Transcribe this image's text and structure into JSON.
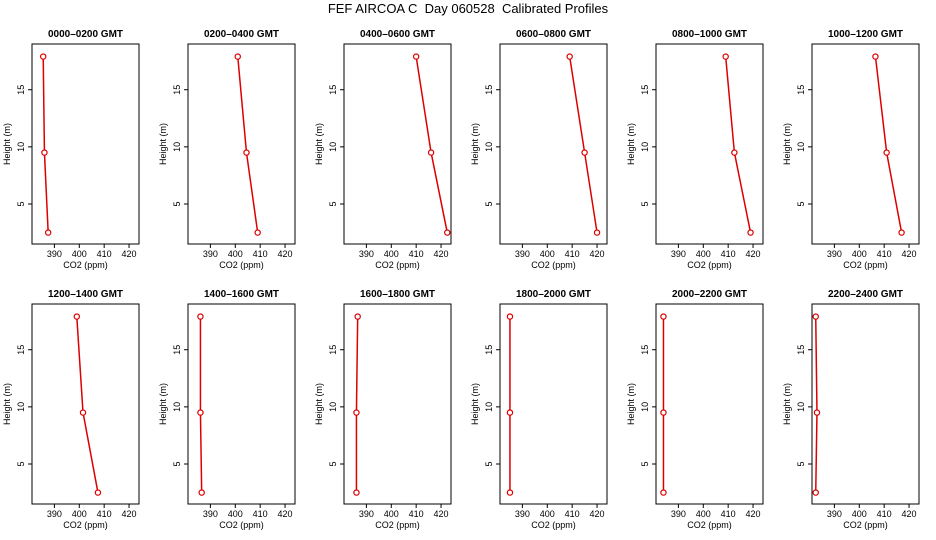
{
  "title": "FEF AIRCOA C  Day 060528  Calibrated Profiles",
  "colors": {
    "profile": "#dd0000",
    "axis": "#000000"
  },
  "chart_data": [
    {
      "type": "line",
      "title": "0000–0200 GMT",
      "xlabel": "CO2 (ppm)",
      "ylabel": "Height (m)",
      "xlim": [
        381,
        424
      ],
      "ylim": [
        1.5,
        19
      ],
      "xticks": [
        390,
        400,
        410,
        420
      ],
      "yticks": [
        5,
        10,
        15
      ],
      "x": [
        387.5,
        386.0,
        385.5
      ],
      "y": [
        2.5,
        9.5,
        17.9
      ]
    },
    {
      "type": "line",
      "title": "0200–0400 GMT",
      "xlabel": "CO2 (ppm)",
      "ylabel": "Height (m)",
      "xlim": [
        381,
        424
      ],
      "ylim": [
        1.5,
        19
      ],
      "xticks": [
        390,
        400,
        410,
        420
      ],
      "yticks": [
        5,
        10,
        15
      ],
      "x": [
        409.0,
        404.5,
        401.0
      ],
      "y": [
        2.5,
        9.5,
        17.9
      ]
    },
    {
      "type": "line",
      "title": "0400–0600 GMT",
      "xlabel": "CO2 (ppm)",
      "ylabel": "Height (m)",
      "xlim": [
        381,
        424
      ],
      "ylim": [
        1.5,
        19
      ],
      "xticks": [
        390,
        400,
        410,
        420
      ],
      "yticks": [
        5,
        10,
        15
      ],
      "x": [
        422.5,
        416.0,
        410.0
      ],
      "y": [
        2.5,
        9.5,
        17.9
      ]
    },
    {
      "type": "line",
      "title": "0600–0800 GMT",
      "xlabel": "CO2 (ppm)",
      "ylabel": "Height (m)",
      "xlim": [
        381,
        424
      ],
      "ylim": [
        1.5,
        19
      ],
      "xticks": [
        390,
        400,
        410,
        420
      ],
      "yticks": [
        5,
        10,
        15
      ],
      "x": [
        420.0,
        415.0,
        409.0
      ],
      "y": [
        2.5,
        9.5,
        17.9
      ]
    },
    {
      "type": "line",
      "title": "0800–1000 GMT",
      "xlabel": "CO2 (ppm)",
      "ylabel": "Height (m)",
      "xlim": [
        381,
        424
      ],
      "ylim": [
        1.5,
        19
      ],
      "xticks": [
        390,
        400,
        410,
        420
      ],
      "yticks": [
        5,
        10,
        15
      ],
      "x": [
        419.0,
        412.5,
        409.0
      ],
      "y": [
        2.5,
        9.5,
        17.9
      ]
    },
    {
      "type": "line",
      "title": "1000–1200 GMT",
      "xlabel": "CO2 (ppm)",
      "ylabel": "Height (m)",
      "xlim": [
        381,
        424
      ],
      "ylim": [
        1.5,
        19
      ],
      "xticks": [
        390,
        400,
        410,
        420
      ],
      "yticks": [
        5,
        10,
        15
      ],
      "x": [
        417.0,
        411.0,
        406.5
      ],
      "y": [
        2.5,
        9.5,
        17.9
      ]
    },
    {
      "type": "line",
      "title": "1200–1400 GMT",
      "xlabel": "CO2 (ppm)",
      "ylabel": "Height (m)",
      "xlim": [
        381,
        424
      ],
      "ylim": [
        1.5,
        19
      ],
      "xticks": [
        390,
        400,
        410,
        420
      ],
      "yticks": [
        5,
        10,
        15
      ],
      "x": [
        407.5,
        401.5,
        399.0
      ],
      "y": [
        2.5,
        9.5,
        17.9
      ]
    },
    {
      "type": "line",
      "title": "1400–1600 GMT",
      "xlabel": "CO2 (ppm)",
      "ylabel": "Height (m)",
      "xlim": [
        381,
        424
      ],
      "ylim": [
        1.5,
        19
      ],
      "xticks": [
        390,
        400,
        410,
        420
      ],
      "yticks": [
        5,
        10,
        15
      ],
      "x": [
        386.5,
        386.0,
        386.0
      ],
      "y": [
        2.5,
        9.5,
        17.9
      ]
    },
    {
      "type": "line",
      "title": "1600–1800 GMT",
      "xlabel": "CO2 (ppm)",
      "ylabel": "Height (m)",
      "xlim": [
        381,
        424
      ],
      "ylim": [
        1.5,
        19
      ],
      "xticks": [
        390,
        400,
        410,
        420
      ],
      "yticks": [
        5,
        10,
        15
      ],
      "x": [
        386.0,
        386.0,
        386.5
      ],
      "y": [
        2.5,
        9.5,
        17.9
      ]
    },
    {
      "type": "line",
      "title": "1800–2000 GMT",
      "xlabel": "CO2 (ppm)",
      "ylabel": "Height (m)",
      "xlim": [
        381,
        424
      ],
      "ylim": [
        1.5,
        19
      ],
      "xticks": [
        390,
        400,
        410,
        420
      ],
      "yticks": [
        5,
        10,
        15
      ],
      "x": [
        385.0,
        385.0,
        385.0
      ],
      "y": [
        2.5,
        9.5,
        17.9
      ]
    },
    {
      "type": "line",
      "title": "2000–2200 GMT",
      "xlabel": "CO2 (ppm)",
      "ylabel": "Height (m)",
      "xlim": [
        381,
        424
      ],
      "ylim": [
        1.5,
        19
      ],
      "xticks": [
        390,
        400,
        410,
        420
      ],
      "yticks": [
        5,
        10,
        15
      ],
      "x": [
        384.0,
        384.0,
        384.0
      ],
      "y": [
        2.5,
        9.5,
        17.9
      ]
    },
    {
      "type": "line",
      "title": "2200–2400 GMT",
      "xlabel": "CO2 (ppm)",
      "ylabel": "Height (m)",
      "xlim": [
        381,
        424
      ],
      "ylim": [
        1.5,
        19
      ],
      "xticks": [
        390,
        400,
        410,
        420
      ],
      "yticks": [
        5,
        10,
        15
      ],
      "x": [
        382.5,
        383.0,
        382.5
      ],
      "y": [
        2.5,
        9.5,
        17.9
      ]
    }
  ]
}
